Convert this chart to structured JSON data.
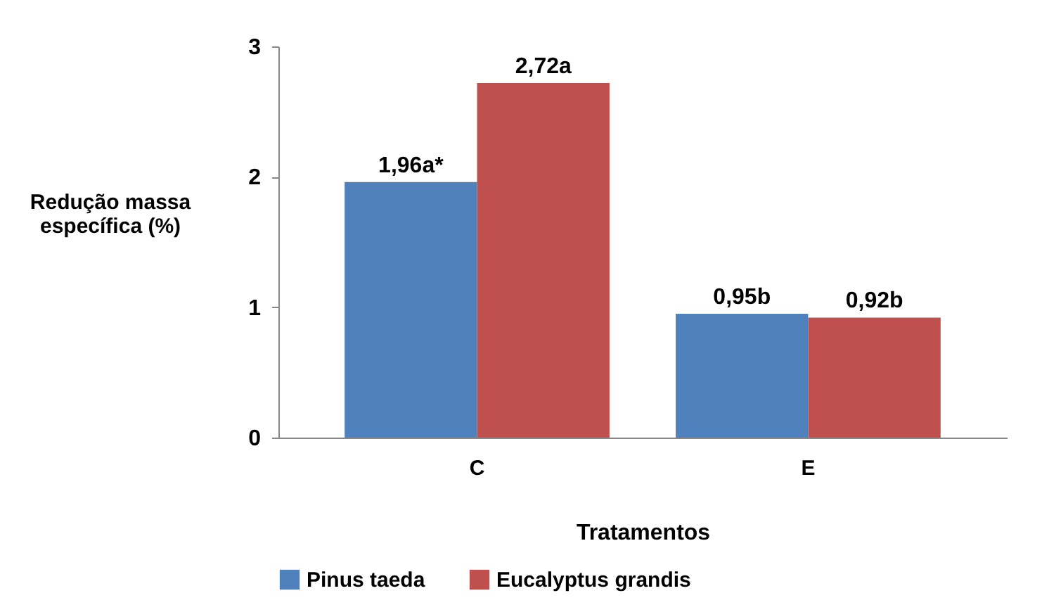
{
  "chart_data": {
    "type": "bar",
    "xlabel": "Tratamentos",
    "ylabel": "Redução massa específica (%)",
    "categories": [
      "C",
      "E"
    ],
    "series": [
      {
        "name": "Pinus taeda",
        "color": "#4f81bd",
        "values": [
          1.96,
          0.95
        ],
        "value_labels": [
          "1,96a*",
          "0,95b"
        ]
      },
      {
        "name": "Eucalyptus grandis",
        "color": "#c0504d",
        "values": [
          2.72,
          0.92
        ],
        "value_labels": [
          "2,72a",
          "0,92b"
        ]
      }
    ],
    "ylim": [
      0,
      3
    ],
    "yticks": [
      0,
      1,
      2,
      3
    ],
    "grid": false,
    "legend": "bottom"
  }
}
